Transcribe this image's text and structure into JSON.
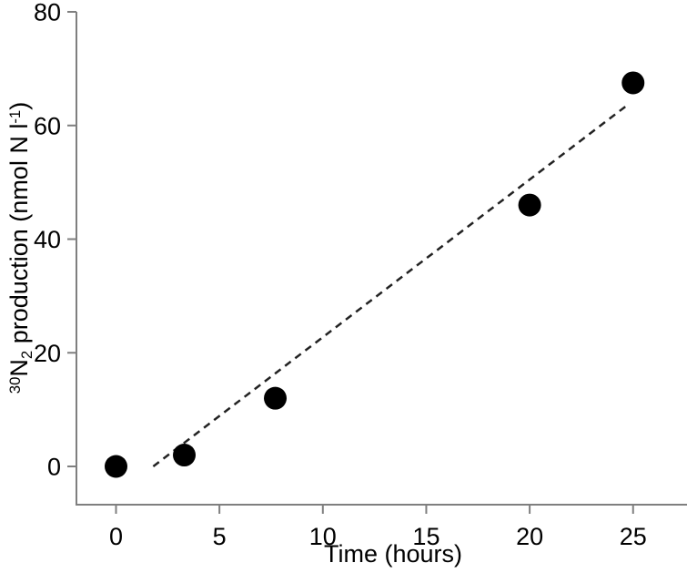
{
  "chart_data": {
    "type": "scatter",
    "title": "",
    "xlabel": "Time (hours)",
    "ylabel_text": "30N2 production (nmol N l-1)",
    "ylabel_parts": [
      {
        "t": "30",
        "style": "sup"
      },
      {
        "t": "N",
        "style": "normal"
      },
      {
        "t": "2",
        "style": "sub"
      },
      {
        "t": " production (nmol N l",
        "style": "normal"
      },
      {
        "t": "-1",
        "style": "sup"
      },
      {
        "t": ")",
        "style": "normal"
      }
    ],
    "xlim": [
      0,
      25
    ],
    "ylim": [
      0,
      80
    ],
    "xticks": [
      0,
      5,
      10,
      15,
      20,
      25
    ],
    "yticks": [
      0,
      20,
      40,
      60,
      80
    ],
    "grid": false,
    "legend_position": "none",
    "series": [
      {
        "name": "30N2 production",
        "marker": "filled-circle",
        "color": "#000000",
        "points": [
          {
            "x": 0,
            "y": 0
          },
          {
            "x": 3.3,
            "y": 2
          },
          {
            "x": 7.7,
            "y": 12
          },
          {
            "x": 20,
            "y": 46
          },
          {
            "x": 25,
            "y": 67.5
          }
        ]
      }
    ],
    "trendline": {
      "style": "dashed",
      "x_start": 1.8,
      "y_start": 0,
      "x_end": 24.8,
      "y_end": 63.8,
      "color": "#222222"
    },
    "colors": {
      "axis": "#7f7f7f",
      "text": "#000000",
      "marker": "#000000",
      "background": "#ffffff"
    }
  }
}
